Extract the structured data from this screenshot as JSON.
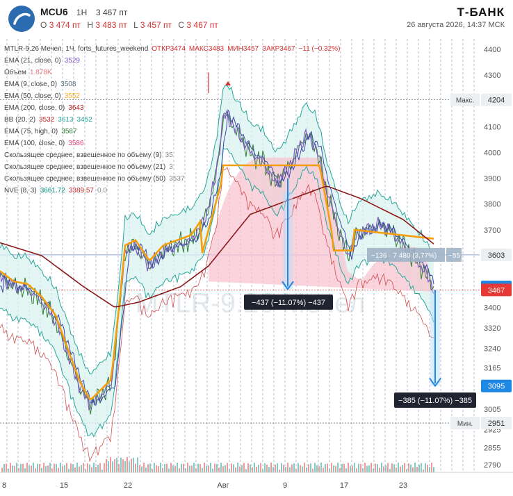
{
  "header": {
    "symbol": "MCU6",
    "timeframe": "1Н",
    "last_price": "3 467 пт",
    "ohlc": {
      "o_label": "О",
      "o_value": "3 474 пт",
      "h_label": "Н",
      "h_value": "3 483 пт",
      "l_label": "L",
      "l_value": "3 457 пт",
      "c_label": "С",
      "c_value": "3 467 пт"
    },
    "brand": "Т-БАНК",
    "datetime": "26 августа 2026, 14:37 МСК"
  },
  "legend": [
    {
      "name": "MTLR-9.26 Мечел, 1Ч, forts_futures_weekend",
      "values": [
        "ОТКР3474",
        "МАКС3483",
        "МИН3457",
        "ЗАКР3467",
        "−11 (−0.32%)"
      ],
      "colors": [
        "#d32f2f",
        "#d32f2f",
        "#d32f2f",
        "#d32f2f",
        "#d32f2f"
      ]
    },
    {
      "name": "EMA (21, close, 0)",
      "values": [
        "3529"
      ],
      "colors": [
        "#7e57c2"
      ]
    },
    {
      "name": "Объем",
      "values": [
        "1.878K"
      ],
      "colors": [
        "#e57373"
      ]
    },
    {
      "name": "EMA (9, close, 0)",
      "values": [
        "3508"
      ],
      "colors": [
        "#546e7a"
      ]
    },
    {
      "name": "EMA (50, close, 0)",
      "values": [
        "3552"
      ],
      "colors": [
        "#f9a825"
      ]
    },
    {
      "name": "EMA (200, close, 0)",
      "values": [
        "3643"
      ],
      "colors": [
        "#b71c1c"
      ]
    },
    {
      "name": "BB (20, 2)",
      "values": [
        "3532",
        "3613",
        "3452"
      ],
      "colors": [
        "#c62828",
        "#26a69a",
        "#26a69a"
      ]
    },
    {
      "name": "EMA (75, high, 0)",
      "values": [
        "3587"
      ],
      "colors": [
        "#2e7d32"
      ]
    },
    {
      "name": "EMA (100, close, 0)",
      "values": [
        "3586"
      ],
      "colors": [
        "#ec407a"
      ]
    },
    {
      "name": "Скользящее среднее, взвешенное по объему (9)",
      "values": [
        "35"
      ],
      "colors": [
        "#888"
      ]
    },
    {
      "name": "Скользящее среднее, взвешенное по объему (21)",
      "values": [
        "3"
      ],
      "colors": [
        "#888"
      ]
    },
    {
      "name": "Скользящее среднее, взвешенное по объему (50)",
      "values": [
        "3537"
      ],
      "colors": [
        "#888"
      ]
    },
    {
      "name": "NVE (8, 3)",
      "values": [
        "3661.72",
        "3389.57",
        "0.0"
      ],
      "colors": [
        "#00897b",
        "#c62828",
        "#888"
      ]
    }
  ],
  "watermark": "MTLR-9.26 Мечел",
  "price_axis": {
    "ticks": [
      "4400",
      "4300",
      "4204",
      "4100",
      "4000",
      "3900",
      "3800",
      "3700",
      "3603",
      "3479",
      "3467",
      "3400",
      "3320",
      "3240",
      "3165",
      "3095",
      "3005",
      "2951",
      "2925",
      "2855",
      "2790"
    ],
    "max_label": "Макс.",
    "min_label": "Мин.",
    "max_value": "4204",
    "min_value": "2951",
    "current_value": "3467",
    "bb_value": "3479",
    "cursor_value": "3603",
    "target_value": "3095"
  },
  "time_axis": [
    "8",
    "15",
    "22",
    "Авг",
    "9",
    "17",
    "23"
  ],
  "measures": [
    {
      "text": "−437 (−11.07%) −437"
    },
    {
      "text": "−385 (−11.07%) −385"
    },
    {
      "text": "−136 · 7 480 (3,77%)",
      "extra": "−55"
    }
  ],
  "chart_data": {
    "type": "line",
    "x": [
      "8",
      "15",
      "22",
      "Авг",
      "9",
      "17",
      "23"
    ],
    "series": [
      {
        "name": "MTLR-9.26 Мечел",
        "values": [
          3480,
          3100,
          3500,
          4150,
          3950,
          3700,
          3467
        ]
      },
      {
        "name": "EMA (200, close, 0)",
        "values": [
          3650,
          3420,
          3420,
          3560,
          3870,
          3800,
          3643
        ]
      }
    ],
    "ylim": [
      2760,
      4440
    ]
  }
}
